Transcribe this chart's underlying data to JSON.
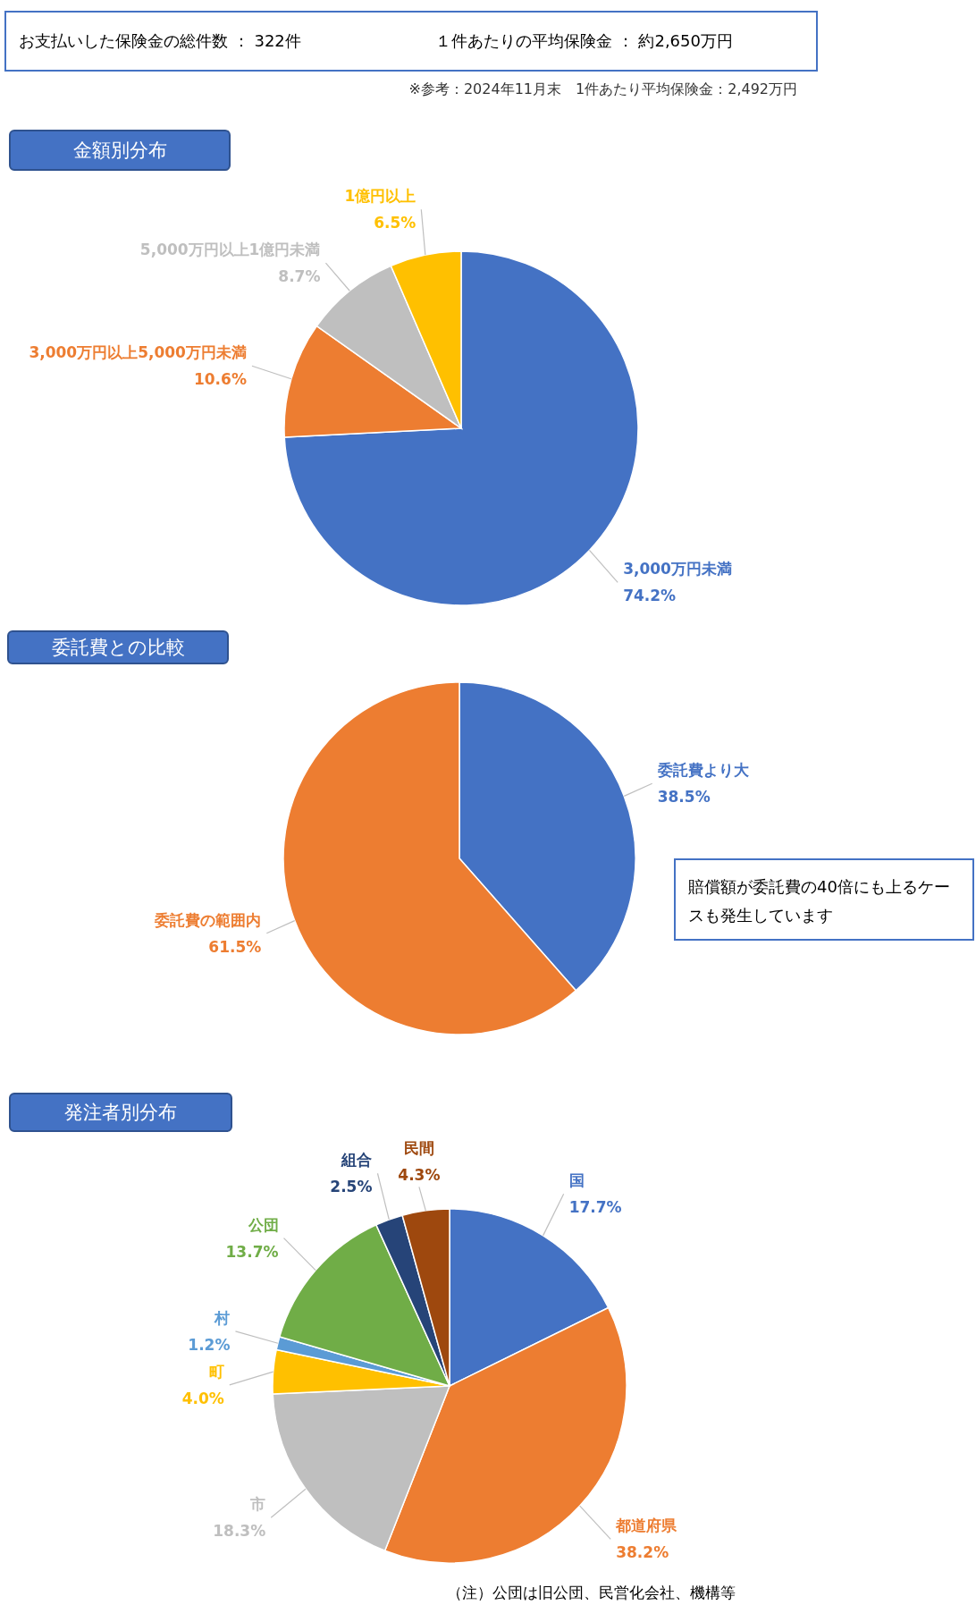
{
  "chart_data": [
    {
      "type": "other",
      "annotations": [
        "お支払いした保険金の総件数 ： 322件",
        "１件あたりの平均保険金 ： 約2,650万円",
        "※参考：2024年11月末　1件あたり平均保険金：2,492万円"
      ]
    },
    {
      "type": "pie",
      "title": "金額別分布",
      "categories": [
        "3,000万円未満",
        "3,000万円以上5,000万円未満",
        "5,000万円以上1億円未満",
        "1億円以上"
      ],
      "values": [
        74.2,
        10.6,
        8.7,
        6.5
      ],
      "value_labels": [
        "74.2%",
        "10.6%",
        "8.7%",
        "6.5%"
      ],
      "colors": [
        "#4472c4",
        "#ed7d31",
        "#bfbfbf",
        "#ffc000"
      ]
    },
    {
      "type": "pie",
      "title": "委託費との比較",
      "categories": [
        "委託費より大",
        "委託費の範囲内"
      ],
      "values": [
        38.5,
        61.5
      ],
      "value_labels": [
        "38.5%",
        "61.5%"
      ],
      "colors": [
        "#4472c4",
        "#ed7d31"
      ],
      "annotations": [
        "賠償額が委託費の40倍にも上るケースも発生しています"
      ]
    },
    {
      "type": "pie",
      "title": "発注者別分布",
      "categories": [
        "国",
        "都道府県",
        "市",
        "町",
        "村",
        "公団",
        "組合",
        "民間"
      ],
      "values": [
        17.7,
        38.2,
        18.3,
        4.0,
        1.2,
        13.7,
        2.5,
        4.3
      ],
      "value_labels": [
        "17.7%",
        "38.2%",
        "18.3%",
        "4.0%",
        "1.2%",
        "13.7%",
        "2.5%",
        "4.3%"
      ],
      "colors": [
        "#4472c4",
        "#ed7d31",
        "#bfbfbf",
        "#ffc000",
        "#5b9bd5",
        "#70ad47",
        "#264478",
        "#9e480e"
      ],
      "annotations": [
        "（注）公団は旧公団、民営化会社、機構等"
      ]
    }
  ]
}
